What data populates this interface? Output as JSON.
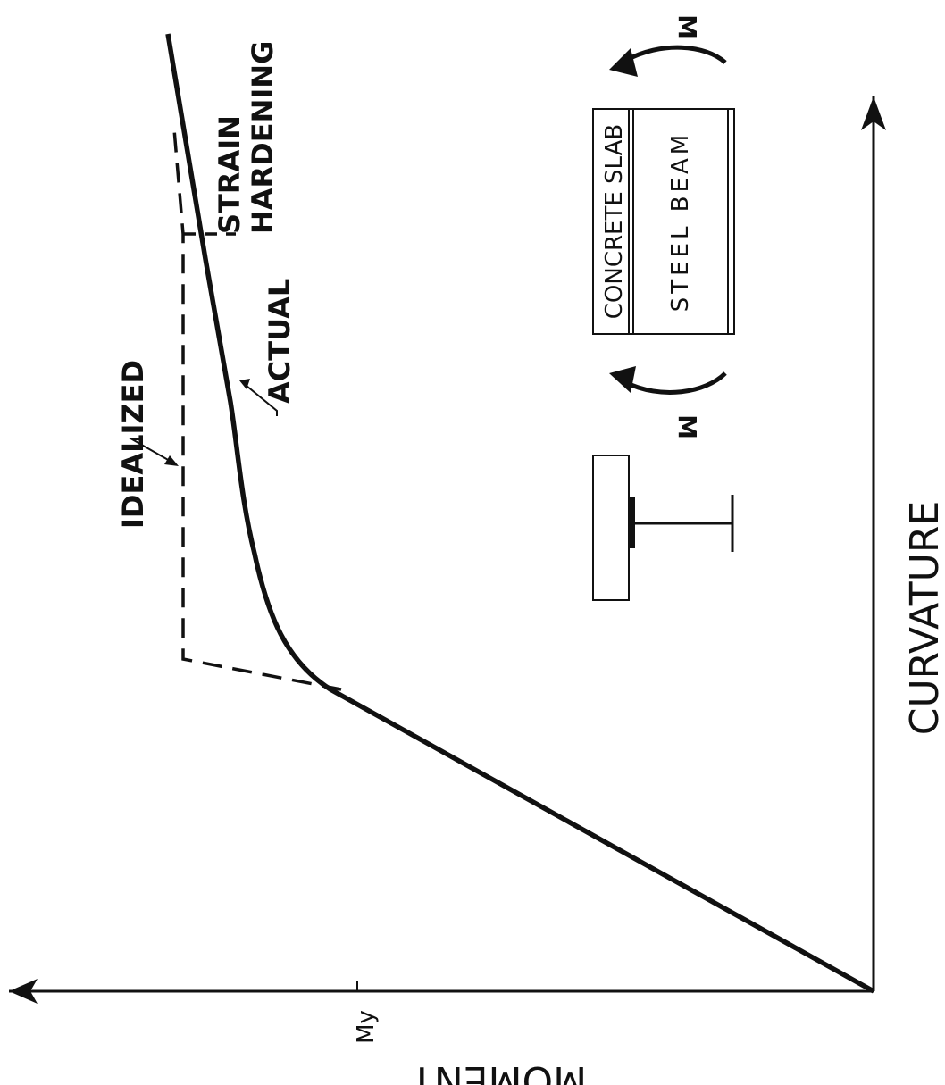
{
  "chart_data": {
    "type": "line",
    "orientation": "rotated-90-ccw",
    "xlabel": "CURVATURE",
    "ylabel": "MOMENT",
    "y_tick_labels": [
      "My"
    ],
    "series": [
      {
        "name": "ACTUAL",
        "style": "solid",
        "points": "origin → My (linear) → rounded knee → slowly rising strain-hardening branch"
      },
      {
        "name": "IDEALIZED",
        "style": "dashed",
        "points": "extension of elastic line → horizontal plateau → rising strain-hardening branch"
      }
    ],
    "annotations": [
      "IDEALIZED",
      "ACTUAL",
      "STRAIN",
      "HARDENING"
    ],
    "inset": {
      "slab_label": "CONCRETE SLAB",
      "beam_label": "STEEL BEAM",
      "moment_label_left": "M",
      "moment_label_right": "M"
    }
  }
}
